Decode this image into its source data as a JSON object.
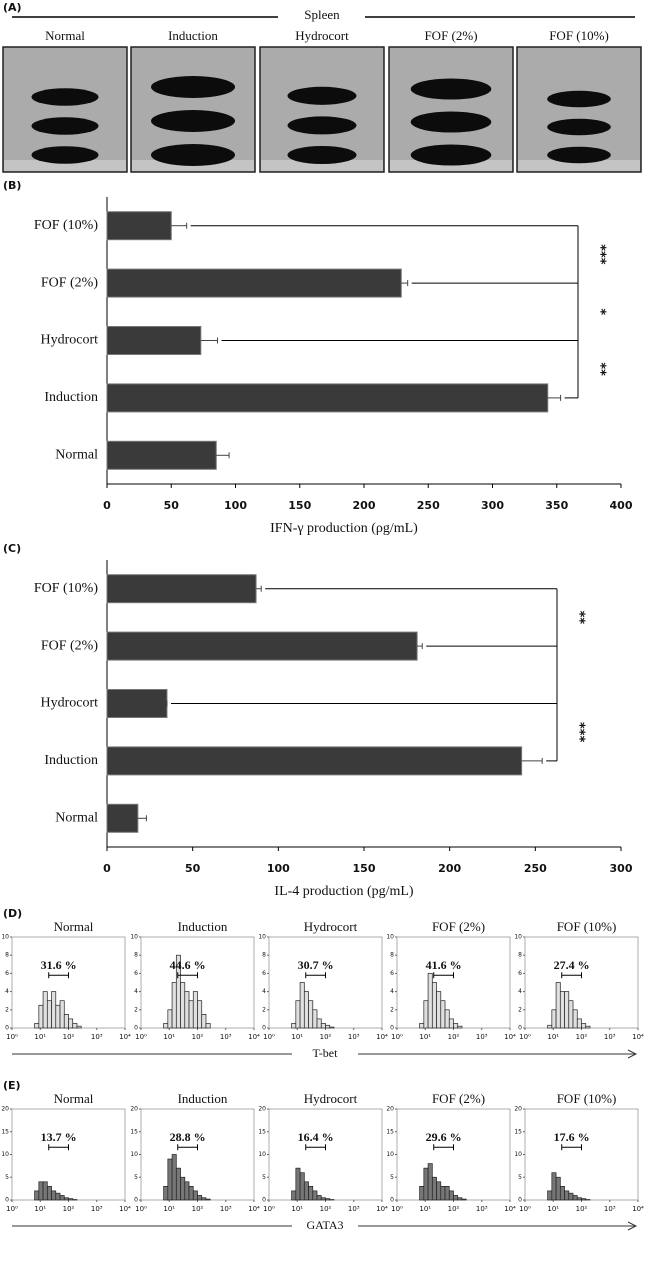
{
  "panel_a": {
    "label": "(A)",
    "title": "Spleen",
    "groups": [
      "Normal",
      "Induction",
      "Hydrocort",
      "FOF (2%)",
      "FOF (10%)"
    ]
  },
  "chart_data": [
    {
      "type": "bar",
      "orientation": "horizontal",
      "label": "(B)",
      "categories": [
        "FOF (10%)",
        "FOF (2%)",
        "Hydrocort",
        "Induction",
        "Normal"
      ],
      "values": [
        50,
        229,
        73,
        343,
        85
      ],
      "errors": [
        12,
        5,
        13,
        10,
        10
      ],
      "color": "#3a3a3a",
      "xlim": [
        0,
        400
      ],
      "xticks": [
        0,
        50,
        100,
        150,
        200,
        250,
        300,
        350,
        400
      ],
      "xlabel": "IFN-γ production (ρg/mL)",
      "annotations": [
        "***",
        "*",
        "**"
      ]
    },
    {
      "type": "bar",
      "orientation": "horizontal",
      "label": "(C)",
      "categories": [
        "FOF (10%)",
        "FOF (2%)",
        "Hydrocort",
        "Induction",
        "Normal"
      ],
      "values": [
        87,
        181,
        35,
        242,
        18
      ],
      "errors": [
        3,
        3,
        0,
        12,
        5
      ],
      "color": "#3a3a3a",
      "xlim": [
        0,
        300
      ],
      "xticks": [
        0,
        50,
        100,
        150,
        200,
        250,
        300
      ],
      "xlabel": "IL-4 production (pg/mL)",
      "annotations": [
        "**",
        "***"
      ]
    },
    {
      "type": "histogram",
      "label": "(D)",
      "xlabel": "T-bet",
      "color": "#e0e0e0",
      "bins": [
        0.8,
        0.95,
        1.1,
        1.25,
        1.4,
        1.55,
        1.7,
        1.85,
        2.0,
        2.15,
        2.3,
        2.45,
        2.6
      ],
      "xlim": [
        0,
        4
      ],
      "xticks": [
        {
          "value": 0,
          "label": "10⁰"
        },
        {
          "value": 1,
          "label": "10¹"
        },
        {
          "value": 2,
          "label": "10²"
        },
        {
          "value": 3,
          "label": "10³"
        },
        {
          "value": 4,
          "label": "10⁴"
        }
      ],
      "ylim": [
        0,
        10
      ],
      "yticks": [
        0,
        2,
        4,
        6,
        8,
        10
      ],
      "panels": [
        {
          "title": "Normal",
          "values": [
            0.5,
            2.5,
            4,
            3,
            4,
            2.5,
            3,
            1.5,
            1,
            0.5,
            0.2,
            0
          ],
          "gate": 31.6,
          "gate_label": "31.6 %"
        },
        {
          "title": "Induction",
          "values": [
            0.5,
            2,
            5,
            8,
            5,
            4,
            3,
            4,
            3,
            1.5,
            0.5,
            0
          ],
          "gate": 44.6,
          "gate_label": "44.6 %"
        },
        {
          "title": "Hydrocort",
          "values": [
            0.5,
            3,
            5,
            4,
            3,
            2,
            1,
            0.5,
            0.3,
            0.1,
            0,
            0
          ],
          "gate": 30.7,
          "gate_label": "30.7 %"
        },
        {
          "title": "FOF (2%)",
          "values": [
            0.5,
            3,
            6,
            5,
            4,
            3,
            2,
            1,
            0.5,
            0.2,
            0,
            0
          ],
          "gate": 41.6,
          "gate_label": "41.6 %"
        },
        {
          "title": "FOF (10%)",
          "values": [
            0.3,
            2,
            5,
            4,
            4,
            3,
            2,
            1,
            0.5,
            0.2,
            0,
            0
          ],
          "gate": 27.4,
          "gate_label": "27.4 %"
        }
      ]
    },
    {
      "type": "histogram",
      "label": "(E)",
      "xlabel": "GATA3",
      "color": "#777777",
      "bins": [
        0.8,
        0.95,
        1.1,
        1.25,
        1.4,
        1.55,
        1.7,
        1.85,
        2.0,
        2.15,
        2.3,
        2.45,
        2.6
      ],
      "xlim": [
        0,
        4
      ],
      "xticks": [
        {
          "value": 0,
          "label": "10⁰"
        },
        {
          "value": 1,
          "label": "10¹"
        },
        {
          "value": 2,
          "label": "10²"
        },
        {
          "value": 3,
          "label": "10³"
        },
        {
          "value": 4,
          "label": "10⁴"
        }
      ],
      "ylim": [
        0,
        20
      ],
      "yticks": [
        0,
        5,
        10,
        15,
        20
      ],
      "panels": [
        {
          "title": "Normal",
          "values": [
            2,
            4,
            4,
            3,
            2,
            1.5,
            1,
            0.5,
            0.3,
            0.1,
            0,
            0
          ],
          "gate": 13.7,
          "gate_label": "13.7 %"
        },
        {
          "title": "Induction",
          "values": [
            3,
            9,
            10,
            7,
            5,
            4,
            3,
            2,
            1,
            0.5,
            0.2,
            0
          ],
          "gate": 28.8,
          "gate_label": "28.8 %"
        },
        {
          "title": "Hydrocort",
          "values": [
            2,
            7,
            6,
            4,
            3,
            2,
            1,
            0.5,
            0.3,
            0.1,
            0,
            0
          ],
          "gate": 16.4,
          "gate_label": "16.4 %"
        },
        {
          "title": "FOF (2%)",
          "values": [
            3,
            7,
            8,
            5,
            4,
            3,
            3,
            2,
            1,
            0.5,
            0.2,
            0
          ],
          "gate": 29.6,
          "gate_label": "29.6 %"
        },
        {
          "title": "FOF (10%)",
          "values": [
            2,
            6,
            5,
            3,
            2,
            1.5,
            1,
            0.5,
            0.3,
            0.1,
            0,
            0
          ],
          "gate": 17.6,
          "gate_label": "17.6 %"
        }
      ]
    }
  ]
}
